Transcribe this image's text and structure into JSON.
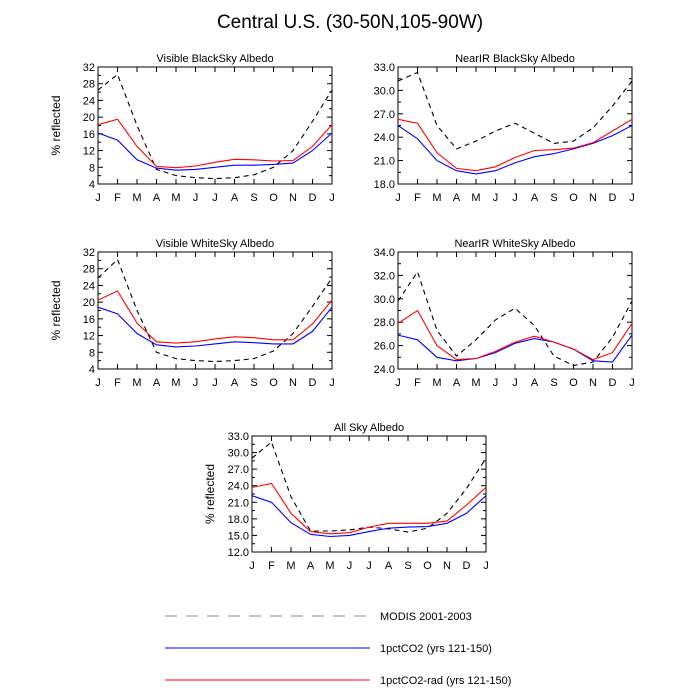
{
  "figure": {
    "title": "Central U.S. (30-50N,105-90W)"
  },
  "legend": [
    {
      "label": "MODIS 2001-2003",
      "color": "#000000",
      "dash": true
    },
    {
      "label": "1pctCO2 (yrs 121-150)",
      "color": "#0000ff",
      "dash": false
    },
    {
      "label": "1pctCO2-rad (yrs 121-150)",
      "color": "#ff0000",
      "dash": false
    }
  ],
  "colors": {
    "modis": "#000000",
    "pctco2": "#0000ff",
    "pctco2_rad": "#ff0000"
  },
  "chart_data": [
    {
      "type": "line",
      "title": "Visible BlackSky Albedo",
      "xlabel": "",
      "ylabel": "% reflected",
      "categories": [
        "J",
        "F",
        "M",
        "A",
        "M",
        "J",
        "J",
        "A",
        "S",
        "O",
        "N",
        "D",
        "J"
      ],
      "ylim": [
        4,
        32
      ],
      "yticks": [
        "4",
        "8",
        "12",
        "16",
        "20",
        "24",
        "28",
        "32"
      ],
      "yticks_values": [
        4,
        8,
        12,
        16,
        20,
        24,
        28,
        32
      ],
      "grid": false,
      "series": [
        {
          "name": "MODIS 2001-2003",
          "values": [
            26.5,
            30.2,
            18.0,
            7.5,
            6.0,
            5.5,
            5.3,
            5.5,
            6.2,
            8.0,
            12.0,
            19.0,
            26.5
          ]
        },
        {
          "name": "1pctCO2 (yrs 121-150)",
          "values": [
            16.2,
            14.5,
            9.8,
            7.8,
            7.3,
            7.5,
            8.0,
            8.5,
            8.5,
            8.7,
            9.0,
            12.0,
            16.2
          ]
        },
        {
          "name": "1pctCO2-rad (yrs 121-150)",
          "values": [
            18.2,
            19.5,
            13.0,
            8.2,
            7.9,
            8.3,
            9.2,
            9.9,
            9.8,
            9.5,
            9.6,
            13.0,
            18.2
          ]
        }
      ]
    },
    {
      "type": "line",
      "title": "NearIR BlackSky Albedo",
      "xlabel": "",
      "ylabel": "",
      "categories": [
        "J",
        "F",
        "M",
        "A",
        "M",
        "J",
        "J",
        "A",
        "S",
        "O",
        "N",
        "D",
        "J"
      ],
      "ylim": [
        18.0,
        33.0
      ],
      "yticks": [
        "18.0",
        "21.0",
        "24.0",
        "27.0",
        "30.0",
        "33.0"
      ],
      "yticks_values": [
        18,
        21,
        24,
        27,
        30,
        33
      ],
      "grid": false,
      "series": [
        {
          "name": "MODIS 2001-2003",
          "values": [
            31.2,
            32.3,
            25.5,
            22.5,
            23.5,
            24.8,
            25.8,
            24.5,
            23.2,
            23.5,
            25.2,
            28.0,
            31.2
          ]
        },
        {
          "name": "1pctCO2 (yrs 121-150)",
          "values": [
            25.5,
            23.8,
            21.0,
            19.7,
            19.3,
            19.7,
            20.7,
            21.5,
            21.9,
            22.5,
            23.2,
            24.2,
            25.5
          ]
        },
        {
          "name": "1pctCO2-rad (yrs 121-150)",
          "values": [
            26.3,
            25.8,
            22.0,
            20.0,
            19.7,
            20.2,
            21.4,
            22.3,
            22.4,
            22.6,
            23.3,
            24.8,
            26.3
          ]
        }
      ]
    },
    {
      "type": "line",
      "title": "Visible WhiteSky Albedo",
      "xlabel": "",
      "ylabel": "% reflected",
      "categories": [
        "J",
        "F",
        "M",
        "A",
        "M",
        "J",
        "J",
        "A",
        "S",
        "O",
        "N",
        "D",
        "J"
      ],
      "ylim": [
        4,
        32
      ],
      "yticks": [
        "4",
        "8",
        "12",
        "16",
        "20",
        "24",
        "28",
        "32"
      ],
      "yticks_values": [
        4,
        8,
        12,
        16,
        20,
        24,
        28,
        32
      ],
      "grid": false,
      "series": [
        {
          "name": "MODIS 2001-2003",
          "values": [
            25.8,
            30.2,
            18.0,
            8.0,
            6.5,
            6.0,
            5.8,
            6.0,
            6.5,
            8.3,
            12.5,
            19.0,
            25.8
          ]
        },
        {
          "name": "1pctCO2 (yrs 121-150)",
          "values": [
            18.8,
            17.2,
            12.5,
            9.8,
            9.3,
            9.5,
            10.0,
            10.5,
            10.3,
            10.0,
            10.0,
            13.0,
            18.8
          ]
        },
        {
          "name": "1pctCO2-rad (yrs 121-150)",
          "values": [
            20.5,
            22.7,
            15.0,
            10.5,
            10.2,
            10.5,
            11.2,
            11.7,
            11.5,
            11.0,
            11.0,
            14.8,
            20.5
          ]
        }
      ]
    },
    {
      "type": "line",
      "title": "NearIR WhiteSky Albedo",
      "xlabel": "",
      "ylabel": "",
      "categories": [
        "J",
        "F",
        "M",
        "A",
        "M",
        "J",
        "J",
        "A",
        "S",
        "O",
        "N",
        "D",
        "J"
      ],
      "ylim": [
        24.0,
        34.0
      ],
      "yticks": [
        "24.0",
        "26.0",
        "28.0",
        "30.0",
        "32.0",
        "34.0"
      ],
      "yticks_values": [
        24,
        26,
        28,
        30,
        32,
        34
      ],
      "grid": false,
      "series": [
        {
          "name": "MODIS 2001-2003",
          "values": [
            29.8,
            32.3,
            27.3,
            25.1,
            26.5,
            28.2,
            29.2,
            27.7,
            25.1,
            24.3,
            24.6,
            26.7,
            29.8
          ]
        },
        {
          "name": "1pctCO2 (yrs 121-150)",
          "values": [
            26.9,
            26.5,
            25.0,
            24.7,
            24.9,
            25.4,
            26.2,
            26.6,
            26.3,
            25.7,
            24.7,
            24.6,
            26.9
          ]
        },
        {
          "name": "1pctCO2-rad (yrs 121-150)",
          "values": [
            27.9,
            29.0,
            26.0,
            24.8,
            24.9,
            25.5,
            26.3,
            26.8,
            26.3,
            25.7,
            24.8,
            25.4,
            27.9
          ]
        }
      ]
    },
    {
      "type": "line",
      "title": "All Sky Albedo",
      "xlabel": "",
      "ylabel": "% reflected",
      "categories": [
        "J",
        "F",
        "M",
        "A",
        "M",
        "J",
        "J",
        "A",
        "S",
        "O",
        "N",
        "D",
        "J"
      ],
      "ylim": [
        12.0,
        33.0
      ],
      "yticks": [
        "12.0",
        "15.0",
        "18.0",
        "21.0",
        "24.0",
        "27.0",
        "30.0",
        "33.0"
      ],
      "yticks_values": [
        12,
        15,
        18,
        21,
        24,
        27,
        30,
        33
      ],
      "grid": false,
      "series": [
        {
          "name": "MODIS 2001-2003",
          "values": [
            29.0,
            31.9,
            22.0,
            15.8,
            15.8,
            16.0,
            16.5,
            16.2,
            15.6,
            16.3,
            19.0,
            23.5,
            29.0
          ]
        },
        {
          "name": "1pctCO2 (yrs 121-150)",
          "values": [
            22.2,
            21.0,
            17.3,
            15.2,
            14.8,
            15.0,
            15.7,
            16.3,
            16.5,
            16.6,
            17.2,
            19.0,
            22.2
          ]
        },
        {
          "name": "1pctCO2-rad (yrs 121-150)",
          "values": [
            23.7,
            24.4,
            19.0,
            15.7,
            15.3,
            15.5,
            16.5,
            17.2,
            17.2,
            17.2,
            17.6,
            20.5,
            23.7
          ]
        }
      ]
    }
  ]
}
